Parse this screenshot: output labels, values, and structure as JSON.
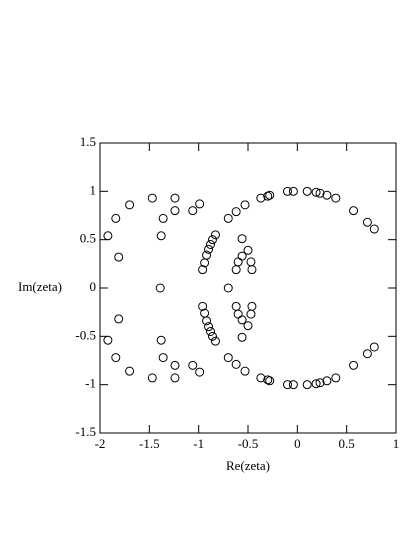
{
  "chart_data": {
    "type": "scatter",
    "x_label": "Re(zeta)",
    "y_label": "Im(zeta)",
    "xlim": [
      -2,
      1
    ],
    "ylim": [
      -1.5,
      1.5
    ],
    "xticks": [
      -2,
      -1.5,
      -1,
      -0.5,
      0,
      0.5,
      1
    ],
    "yticks": [
      -1.5,
      -1,
      -0.5,
      0,
      0.5,
      1,
      1.5
    ],
    "color": "#000000",
    "x": [
      -1.92,
      -1.84,
      -1.7,
      -1.81,
      -1.47,
      -1.36,
      -1.38,
      -1.24,
      -1.24,
      -1.06,
      -0.99,
      -0.96,
      -0.94,
      -0.92,
      -0.9,
      -0.88,
      -0.86,
      -0.83,
      -0.62,
      -0.6,
      -0.56,
      -0.56,
      -0.5,
      -0.47,
      -0.46,
      -0.7,
      -0.62,
      -0.53,
      -0.37,
      -0.3,
      -0.28,
      -0.1,
      -0.04,
      0.1,
      0.19,
      0.23,
      0.3,
      0.39,
      0.57,
      0.71,
      0.78,
      -1.92,
      -1.84,
      -1.7,
      -1.81,
      -1.47,
      -1.36,
      -1.38,
      -1.24,
      -1.24,
      -1.06,
      -0.99,
      -0.96,
      -0.94,
      -0.92,
      -0.9,
      -0.88,
      -0.86,
      -0.83,
      -0.62,
      -0.6,
      -0.56,
      -0.56,
      -0.5,
      -0.47,
      -0.46,
      -0.7,
      -0.62,
      -0.53,
      -0.37,
      -0.3,
      -0.28,
      -0.1,
      -0.04,
      0.1,
      0.19,
      0.23,
      0.3,
      0.39,
      0.57,
      0.71,
      0.78,
      -1.39,
      -0.7
    ],
    "values": [
      0.54,
      0.72,
      0.86,
      0.32,
      0.93,
      0.72,
      0.54,
      0.93,
      0.8,
      0.8,
      0.87,
      0.19,
      0.26,
      0.34,
      0.4,
      0.45,
      0.5,
      0.55,
      0.19,
      0.27,
      0.33,
      0.51,
      0.39,
      0.27,
      0.19,
      0.72,
      0.79,
      0.86,
      0.93,
      0.95,
      0.96,
      1.0,
      1.0,
      1.0,
      0.99,
      0.98,
      0.96,
      0.93,
      0.8,
      0.68,
      0.61,
      -0.54,
      -0.72,
      -0.86,
      -0.32,
      -0.93,
      -0.72,
      -0.54,
      -0.93,
      -0.8,
      -0.8,
      -0.87,
      -0.19,
      -0.26,
      -0.34,
      -0.4,
      -0.45,
      -0.5,
      -0.55,
      -0.19,
      -0.27,
      -0.33,
      -0.51,
      -0.39,
      -0.27,
      -0.19,
      -0.72,
      -0.79,
      -0.86,
      -0.93,
      -0.95,
      -0.96,
      -1.0,
      -1.0,
      -1.0,
      -0.99,
      -0.98,
      -0.96,
      -0.93,
      -0.8,
      -0.68,
      -0.61,
      0,
      0
    ]
  }
}
